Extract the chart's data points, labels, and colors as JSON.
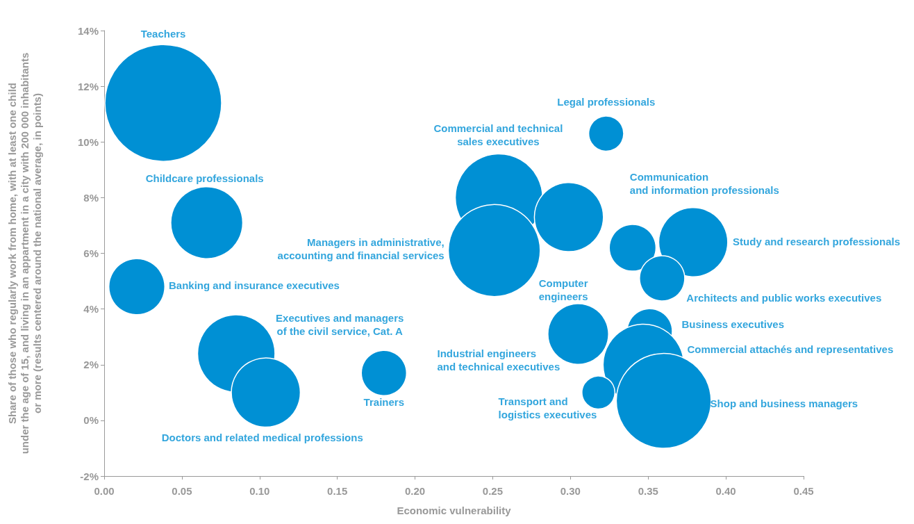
{
  "chart_data": {
    "type": "bubble",
    "xlabel": "Economic vulnerability",
    "ylabel": "Share of those who regularly work from home, with at least one child\nunder the age of 15, and living in an appartment in a city with 200 000 inhabitants\nor more (results centered around the national average, in points)",
    "x": [
      0.038,
      0.066,
      0.021,
      0.085,
      0.104,
      0.18,
      0.254,
      0.251,
      0.299,
      0.323,
      0.34,
      0.379,
      0.359,
      0.305,
      0.351,
      0.347,
      0.318,
      0.36
    ],
    "values": [
      11.4,
      7.1,
      4.8,
      2.4,
      1.0,
      1.7,
      8.0,
      6.1,
      7.3,
      10.3,
      6.2,
      6.4,
      5.1,
      3.1,
      3.2,
      2.0,
      1.0,
      0.7
    ],
    "sizes": [
      1,
      0.38,
      0.23,
      0.44,
      0.35,
      0.15,
      0.56,
      0.62,
      0.35,
      0.09,
      0.16,
      0.35,
      0.15,
      0.27,
      0.15,
      0.48,
      0.08,
      0.66
    ],
    "color": "#0090d4",
    "annotations": [
      "Teachers",
      "Childcare professionals",
      "Banking and insurance executives",
      "Executives and managers\nof the civil service, Cat. A",
      "Doctors and related medical professions",
      "Trainers",
      "Commercial and technical\nsales executives",
      "Managers in administrative,\naccounting and financial services",
      "Computer\nengineers",
      "Legal professionals",
      "Communication\nand information professionals",
      "Study and research professionals",
      "Architects and public works executives",
      "Industrial engineers\nand technical executives",
      "Business executives",
      "Commercial attachés and representatives",
      "Transport and\nlogistics executives",
      "Shop and business managers"
    ],
    "xlim": [
      0,
      0.45
    ],
    "xticks": [
      {
        "value": 0,
        "label": "0.00"
      },
      {
        "value": 0.05,
        "label": "0.05"
      },
      {
        "value": 0.1,
        "label": "0.10"
      },
      {
        "value": 0.15,
        "label": "0.15"
      },
      {
        "value": 0.2,
        "label": "0.20"
      },
      {
        "value": 0.25,
        "label": "0.25"
      },
      {
        "value": 0.3,
        "label": "0.30"
      },
      {
        "value": 0.35,
        "label": "0.35"
      },
      {
        "value": 0.4,
        "label": "0.40"
      },
      {
        "value": 0.45,
        "label": "0.45"
      }
    ],
    "ylim": [
      -2,
      14
    ],
    "yticks": [
      {
        "value": -2,
        "label": "-2%"
      },
      {
        "value": 0,
        "label": "0%"
      },
      {
        "value": 2,
        "label": "2%"
      },
      {
        "value": 4,
        "label": "4%"
      },
      {
        "value": 6,
        "label": "6%"
      },
      {
        "value": 8,
        "label": "8%"
      },
      {
        "value": 10,
        "label": "10%"
      },
      {
        "value": 12,
        "label": "12%"
      },
      {
        "value": 14,
        "label": "14%"
      }
    ],
    "grid": false
  }
}
